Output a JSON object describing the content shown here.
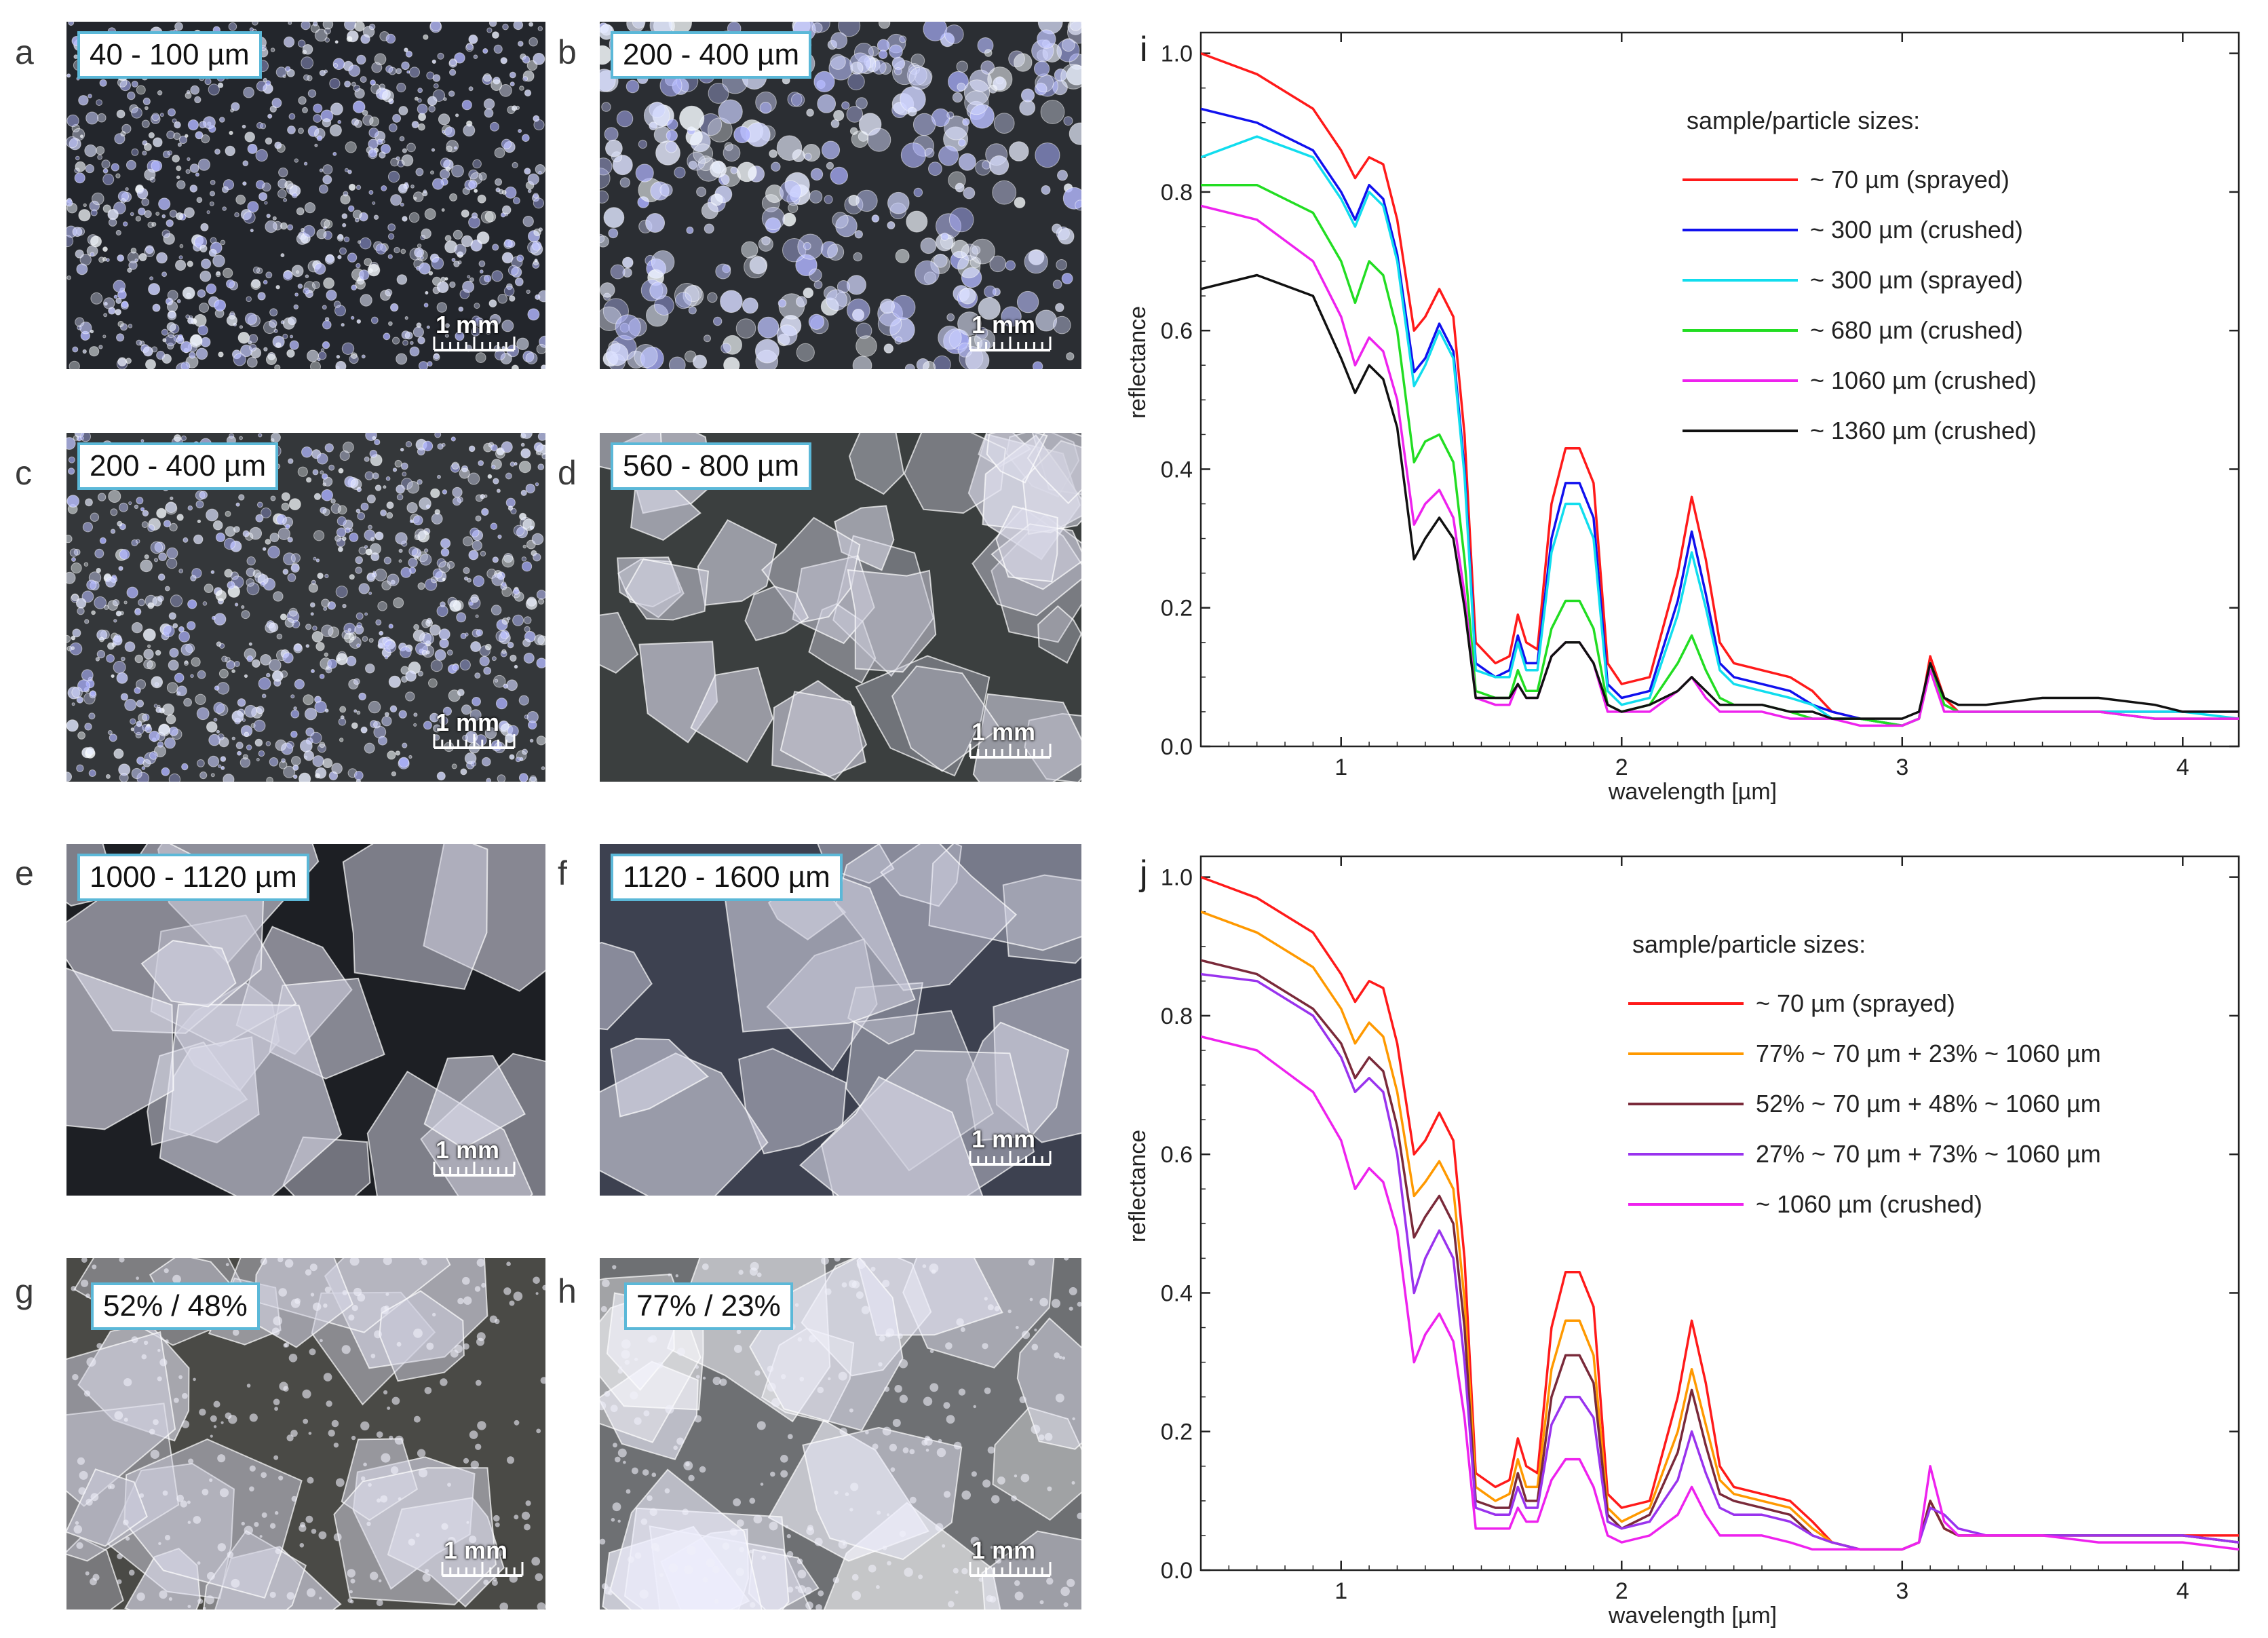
{
  "photos": [
    {
      "letter": "a",
      "label": "40 - 100 µm",
      "scale": "1 mm",
      "style": "grains-dark",
      "seed": 3,
      "bg": "#23262c"
    },
    {
      "letter": "b",
      "label": "200 - 400 µm",
      "scale": "1 mm",
      "style": "spheres",
      "seed": 7,
      "bg": "#2b2e33"
    },
    {
      "letter": "c",
      "label": "200 - 400 µm",
      "scale": "1 mm",
      "style": "grains",
      "seed": 11,
      "bg": "#34373a"
    },
    {
      "letter": "d",
      "label": "560 - 800 µm",
      "scale": "1 mm",
      "style": "shards",
      "seed": 17,
      "bg": "#3b3f3f"
    },
    {
      "letter": "e",
      "label": "1000 - 1120 µm",
      "scale": "1 mm",
      "style": "crystals",
      "seed": 23,
      "bg": "#1d1f24"
    },
    {
      "letter": "f",
      "label": "1120 - 1600 µm",
      "scale": "1 mm",
      "style": "crystals-light",
      "seed": 29,
      "bg": "#3d4150"
    },
    {
      "letter": "g",
      "label": "52% / 48%",
      "scale": "1 mm",
      "style": "mix",
      "seed": 31,
      "bg": "#4a4a46"
    },
    {
      "letter": "h",
      "label": "77% / 23%",
      "scale": "1 mm",
      "style": "mix-bright",
      "seed": 37,
      "bg": "#6e7073"
    }
  ],
  "chart_data": [
    {
      "panel": "i",
      "type": "line",
      "xlabel": "wavelength [µm]",
      "ylabel": "reflectance",
      "xlim": [
        0.5,
        4.2
      ],
      "ylim": [
        0.0,
        1.03
      ],
      "xticks": [
        1,
        2,
        3,
        4
      ],
      "xtick_labels": [
        "1",
        "2",
        "3",
        "4"
      ],
      "yticks": [
        0.0,
        0.2,
        0.4,
        0.6,
        0.8,
        1.0
      ],
      "ytick_labels": [
        "0.0",
        "0.2",
        "0.4",
        "0.6",
        "0.8",
        "1.0"
      ],
      "legend_title": "sample/particle sizes:",
      "legend_position": "top-right",
      "wavelengths": [
        0.5,
        0.7,
        0.9,
        1.0,
        1.05,
        1.1,
        1.15,
        1.2,
        1.26,
        1.3,
        1.35,
        1.4,
        1.44,
        1.48,
        1.55,
        1.6,
        1.63,
        1.66,
        1.7,
        1.75,
        1.8,
        1.85,
        1.9,
        1.95,
        2.0,
        2.1,
        2.2,
        2.25,
        2.3,
        2.35,
        2.4,
        2.5,
        2.6,
        2.68,
        2.75,
        2.85,
        3.0,
        3.06,
        3.1,
        3.15,
        3.2,
        3.3,
        3.5,
        3.7,
        3.9,
        4.0,
        4.2
      ],
      "series": [
        {
          "name": "~ 70 µm (sprayed)",
          "color": "#ff1a1a",
          "values": [
            1.0,
            0.97,
            0.92,
            0.86,
            0.82,
            0.85,
            0.84,
            0.76,
            0.6,
            0.62,
            0.66,
            0.62,
            0.45,
            0.15,
            0.12,
            0.13,
            0.19,
            0.15,
            0.14,
            0.35,
            0.43,
            0.43,
            0.38,
            0.12,
            0.09,
            0.1,
            0.25,
            0.36,
            0.27,
            0.15,
            0.12,
            0.11,
            0.1,
            0.08,
            0.05,
            0.04,
            0.03,
            0.04,
            0.13,
            0.07,
            0.05,
            0.05,
            0.05,
            0.05,
            0.05,
            0.05,
            0.05
          ]
        },
        {
          "name": "~ 300 µm (crushed)",
          "color": "#1111ee",
          "values": [
            0.92,
            0.9,
            0.86,
            0.8,
            0.76,
            0.81,
            0.79,
            0.71,
            0.54,
            0.56,
            0.61,
            0.57,
            0.4,
            0.12,
            0.1,
            0.11,
            0.16,
            0.12,
            0.12,
            0.3,
            0.38,
            0.38,
            0.33,
            0.09,
            0.07,
            0.08,
            0.21,
            0.31,
            0.22,
            0.12,
            0.1,
            0.09,
            0.08,
            0.06,
            0.05,
            0.04,
            0.03,
            0.04,
            0.12,
            0.06,
            0.05,
            0.05,
            0.05,
            0.05,
            0.05,
            0.05,
            0.05
          ]
        },
        {
          "name": "~ 300 µm (sprayed)",
          "color": "#11ddee",
          "values": [
            0.85,
            0.88,
            0.85,
            0.79,
            0.75,
            0.8,
            0.78,
            0.7,
            0.52,
            0.55,
            0.6,
            0.56,
            0.39,
            0.11,
            0.1,
            0.1,
            0.15,
            0.11,
            0.11,
            0.28,
            0.35,
            0.35,
            0.3,
            0.08,
            0.06,
            0.07,
            0.19,
            0.28,
            0.2,
            0.11,
            0.09,
            0.08,
            0.07,
            0.06,
            0.04,
            0.04,
            0.03,
            0.04,
            0.12,
            0.06,
            0.05,
            0.05,
            0.05,
            0.05,
            0.05,
            0.05,
            0.04
          ]
        },
        {
          "name": "~ 680 µm (crushed)",
          "color": "#22dd22",
          "values": [
            0.81,
            0.81,
            0.77,
            0.7,
            0.64,
            0.7,
            0.68,
            0.6,
            0.41,
            0.44,
            0.45,
            0.41,
            0.27,
            0.08,
            0.07,
            0.07,
            0.11,
            0.08,
            0.08,
            0.17,
            0.21,
            0.21,
            0.17,
            0.06,
            0.05,
            0.06,
            0.12,
            0.16,
            0.11,
            0.07,
            0.06,
            0.06,
            0.05,
            0.04,
            0.04,
            0.04,
            0.03,
            0.04,
            0.12,
            0.06,
            0.05,
            0.05,
            0.05,
            0.05,
            0.04,
            0.04,
            0.04
          ]
        },
        {
          "name": "~ 1060 µm (crushed)",
          "color": "#ee22ee",
          "values": [
            0.78,
            0.76,
            0.7,
            0.62,
            0.55,
            0.59,
            0.57,
            0.5,
            0.32,
            0.35,
            0.37,
            0.33,
            0.22,
            0.07,
            0.06,
            0.06,
            0.09,
            0.07,
            0.07,
            0.13,
            0.15,
            0.15,
            0.12,
            0.05,
            0.05,
            0.05,
            0.08,
            0.1,
            0.07,
            0.05,
            0.05,
            0.05,
            0.04,
            0.04,
            0.04,
            0.03,
            0.03,
            0.04,
            0.11,
            0.05,
            0.05,
            0.05,
            0.05,
            0.05,
            0.04,
            0.04,
            0.04
          ]
        },
        {
          "name": "~ 1360 µm (crushed)",
          "color": "#111111",
          "values": [
            0.66,
            0.68,
            0.65,
            0.56,
            0.51,
            0.55,
            0.53,
            0.46,
            0.27,
            0.3,
            0.33,
            0.3,
            0.2,
            0.07,
            0.07,
            0.07,
            0.09,
            0.07,
            0.07,
            0.13,
            0.15,
            0.15,
            0.12,
            0.06,
            0.05,
            0.06,
            0.08,
            0.1,
            0.08,
            0.06,
            0.06,
            0.06,
            0.05,
            0.05,
            0.04,
            0.04,
            0.04,
            0.05,
            0.12,
            0.07,
            0.06,
            0.06,
            0.07,
            0.07,
            0.06,
            0.05,
            0.05
          ]
        }
      ]
    },
    {
      "panel": "j",
      "type": "line",
      "xlabel": "wavelength [µm]",
      "ylabel": "reflectance",
      "xlim": [
        0.5,
        4.2
      ],
      "ylim": [
        0.0,
        1.03
      ],
      "xticks": [
        1,
        2,
        3,
        4
      ],
      "xtick_labels": [
        "1",
        "2",
        "3",
        "4"
      ],
      "yticks": [
        0.0,
        0.2,
        0.4,
        0.6,
        0.8,
        1.0
      ],
      "ytick_labels": [
        "0.0",
        "0.2",
        "0.4",
        "0.6",
        "0.8",
        "1.0"
      ],
      "legend_title": "sample/particle sizes:",
      "legend_position": "top-right",
      "wavelengths": [
        0.5,
        0.7,
        0.9,
        1.0,
        1.05,
        1.1,
        1.15,
        1.2,
        1.26,
        1.3,
        1.35,
        1.4,
        1.44,
        1.48,
        1.55,
        1.6,
        1.63,
        1.66,
        1.7,
        1.75,
        1.8,
        1.85,
        1.9,
        1.95,
        2.0,
        2.1,
        2.2,
        2.25,
        2.3,
        2.35,
        2.4,
        2.5,
        2.6,
        2.68,
        2.75,
        2.85,
        3.0,
        3.06,
        3.1,
        3.15,
        3.2,
        3.3,
        3.5,
        3.7,
        3.9,
        4.0,
        4.2
      ],
      "series": [
        {
          "name": "~ 70 µm (sprayed)",
          "color": "#ff1a1a",
          "values": [
            1.0,
            0.97,
            0.92,
            0.86,
            0.82,
            0.85,
            0.84,
            0.76,
            0.6,
            0.62,
            0.66,
            0.62,
            0.45,
            0.14,
            0.12,
            0.13,
            0.19,
            0.15,
            0.14,
            0.35,
            0.43,
            0.43,
            0.38,
            0.11,
            0.09,
            0.1,
            0.25,
            0.36,
            0.27,
            0.15,
            0.12,
            0.11,
            0.1,
            0.07,
            0.04,
            0.03,
            0.03,
            0.04,
            0.1,
            0.06,
            0.05,
            0.05,
            0.05,
            0.05,
            0.05,
            0.05,
            0.05
          ]
        },
        {
          "name": "77% ~ 70 µm + 23% ~ 1060 µm",
          "color": "#ff9900",
          "values": [
            0.95,
            0.92,
            0.87,
            0.81,
            0.76,
            0.79,
            0.77,
            0.69,
            0.54,
            0.56,
            0.59,
            0.55,
            0.39,
            0.12,
            0.1,
            0.11,
            0.16,
            0.12,
            0.12,
            0.29,
            0.36,
            0.36,
            0.31,
            0.09,
            0.07,
            0.09,
            0.2,
            0.29,
            0.21,
            0.13,
            0.11,
            0.1,
            0.09,
            0.06,
            0.04,
            0.03,
            0.03,
            0.04,
            0.1,
            0.06,
            0.05,
            0.05,
            0.05,
            0.05,
            0.05,
            0.05,
            0.04
          ]
        },
        {
          "name": "52% ~ 70 µm + 48% ~ 1060 µm",
          "color": "#7a2a3a",
          "values": [
            0.88,
            0.86,
            0.81,
            0.76,
            0.71,
            0.74,
            0.72,
            0.64,
            0.48,
            0.51,
            0.54,
            0.5,
            0.35,
            0.1,
            0.09,
            0.09,
            0.14,
            0.1,
            0.1,
            0.25,
            0.31,
            0.31,
            0.27,
            0.08,
            0.06,
            0.08,
            0.17,
            0.26,
            0.18,
            0.11,
            0.1,
            0.09,
            0.08,
            0.05,
            0.04,
            0.03,
            0.03,
            0.04,
            0.1,
            0.06,
            0.05,
            0.05,
            0.05,
            0.05,
            0.05,
            0.05,
            0.04
          ]
        },
        {
          "name": "27% ~ 70 µm + 73% ~ 1060 µm",
          "color": "#9933ee",
          "values": [
            0.86,
            0.85,
            0.8,
            0.74,
            0.69,
            0.71,
            0.69,
            0.6,
            0.4,
            0.45,
            0.49,
            0.45,
            0.3,
            0.09,
            0.08,
            0.08,
            0.12,
            0.09,
            0.09,
            0.21,
            0.25,
            0.25,
            0.22,
            0.07,
            0.06,
            0.07,
            0.13,
            0.2,
            0.14,
            0.09,
            0.08,
            0.08,
            0.07,
            0.05,
            0.04,
            0.03,
            0.03,
            0.04,
            0.09,
            0.08,
            0.06,
            0.05,
            0.05,
            0.05,
            0.05,
            0.05,
            0.04
          ]
        },
        {
          "name": "~ 1060 µm (crushed)",
          "color": "#ee22ee",
          "values": [
            0.77,
            0.75,
            0.69,
            0.62,
            0.55,
            0.58,
            0.56,
            0.49,
            0.3,
            0.34,
            0.37,
            0.33,
            0.22,
            0.06,
            0.06,
            0.06,
            0.09,
            0.07,
            0.07,
            0.13,
            0.16,
            0.16,
            0.12,
            0.05,
            0.04,
            0.05,
            0.08,
            0.12,
            0.08,
            0.05,
            0.05,
            0.05,
            0.04,
            0.03,
            0.03,
            0.03,
            0.03,
            0.04,
            0.15,
            0.07,
            0.05,
            0.05,
            0.05,
            0.04,
            0.04,
            0.04,
            0.03
          ]
        }
      ]
    }
  ]
}
